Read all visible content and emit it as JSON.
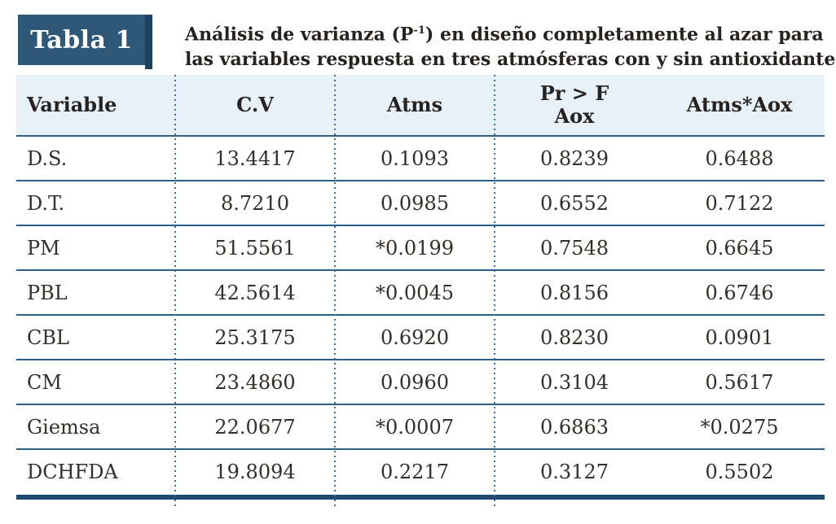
{
  "table": {
    "badge_label": "Tabla 1",
    "title": {
      "line1_pre": "Análisis de varianza (P",
      "sup": "-1",
      "line1_post": ") en diseño completamente al azar para",
      "line2": "las variables respuesta en tres atmósferas con y sin antioxidante"
    },
    "headers": {
      "variable": "Variable",
      "cv": "C.V",
      "atms": "Atms",
      "prf_line1": "Pr > F",
      "prf_line2": "Aox",
      "atms_aox": "Atms*Aox"
    },
    "rows": [
      [
        "D.S.",
        "13.4417",
        "0.1093",
        "0.8239",
        "0.6488"
      ],
      [
        "D.T.",
        "8.7210",
        "0.0985",
        "0.6552",
        "0.7122"
      ],
      [
        "PM",
        "51.5561",
        "*0.0199",
        "0.7548",
        "0.6645"
      ],
      [
        "PBL",
        "42.5614",
        "*0.0045",
        "0.8156",
        "0.6746"
      ],
      [
        "CBL",
        "25.3175",
        "0.6920",
        "0.8230",
        "0.0901"
      ],
      [
        "CM",
        "23.4860",
        "0.0960",
        "0.3104",
        "0.5617"
      ],
      [
        "Giemsa",
        "22.0677",
        "*0.0007",
        "0.6863",
        "*0.0275"
      ],
      [
        "DCHFDA",
        "19.8094",
        "0.2217",
        "0.3127",
        "0.5502"
      ]
    ]
  },
  "chart_data": {
    "type": "table",
    "title": "Análisis de varianza (P-1) en diseño completamente al azar para las variables respuesta en tres atmósferas con y sin antioxidante",
    "columns": [
      "Variable",
      "C.V",
      "Atms",
      "Pr > F Aox",
      "Atms*Aox"
    ],
    "rows": [
      [
        "D.S.",
        "13.4417",
        "0.1093",
        "0.8239",
        "0.6488"
      ],
      [
        "D.T.",
        "8.7210",
        "0.0985",
        "0.6552",
        "0.7122"
      ],
      [
        "PM",
        "51.5561",
        "*0.0199",
        "0.7548",
        "0.6645"
      ],
      [
        "PBL",
        "42.5614",
        "*0.0045",
        "0.8156",
        "0.6746"
      ],
      [
        "CBL",
        "25.3175",
        "0.6920",
        "0.8230",
        "0.0901"
      ],
      [
        "CM",
        "23.4860",
        "0.0960",
        "0.3104",
        "0.5617"
      ],
      [
        "Giemsa",
        "22.0677",
        "*0.0007",
        "0.6863",
        "*0.0275"
      ],
      [
        "DCHFDA",
        "19.8094",
        "0.2217",
        "0.3127",
        "0.5502"
      ]
    ]
  },
  "colors": {
    "badge_blue": "#2e5778",
    "badge_edge_dark": "#1d4160",
    "header_bg": "#e9f1f8",
    "row_line": "#2b5d85",
    "bottom_bar": "#1f4a70",
    "dotted_separator": "#3c6f9e",
    "text": "#332f2b"
  }
}
